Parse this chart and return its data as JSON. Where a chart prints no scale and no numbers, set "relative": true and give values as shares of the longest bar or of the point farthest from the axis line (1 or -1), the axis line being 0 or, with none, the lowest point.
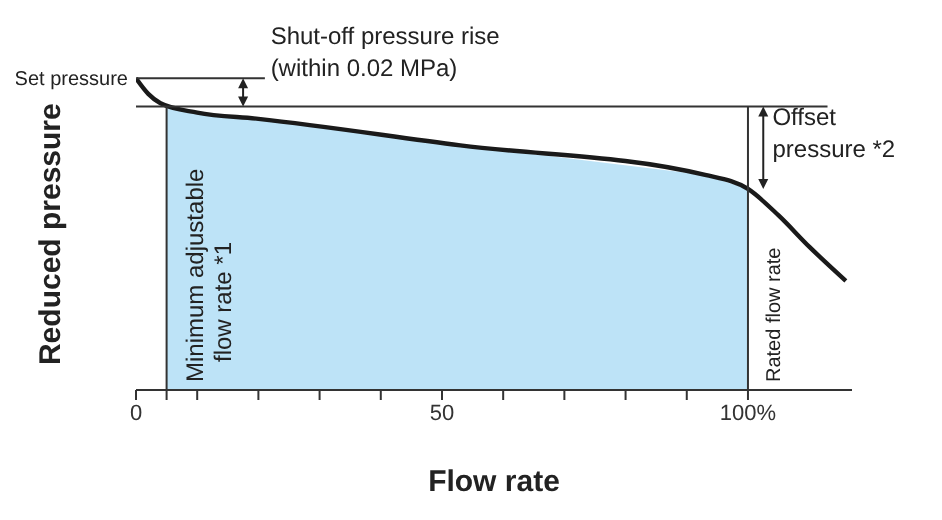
{
  "chart_data": {
    "type": "line",
    "relative": true,
    "xlabel": "Flow rate",
    "ylabel": "Reduced pressure",
    "xlim": [
      0,
      117
    ],
    "xticks": [
      0,
      {
        "value": 5,
        "label": null
      },
      {
        "value": 10,
        "label": null
      },
      {
        "value": 20,
        "label": null
      },
      {
        "value": 30,
        "label": null
      },
      {
        "value": 40,
        "label": null
      },
      50,
      {
        "value": 60,
        "label": null
      },
      {
        "value": 70,
        "label": null
      },
      {
        "value": 80,
        "label": null
      },
      {
        "value": 90,
        "label": null
      },
      {
        "value": 100,
        "label": "100%"
      }
    ],
    "series": [
      {
        "type": "area",
        "color": "#bde3f7",
        "x": [
          5,
          10,
          20,
          53,
          93,
          100
        ],
        "values": [
          0.915,
          0.89,
          0.87,
          0.785,
          0.69,
          0.645
        ]
      },
      {
        "type": "line",
        "color": "#1a1a1a",
        "x": [
          0,
          2,
          4,
          10,
          20,
          53,
          93,
          100,
          105,
          110,
          116
        ],
        "values": [
          1,
          0.95,
          0.92,
          0.89,
          0.87,
          0.785,
          0.69,
          0.645,
          0.56,
          0.46,
          0.35
        ]
      }
    ],
    "ref_lines": [
      {
        "axis": "x",
        "value": 5,
        "label": "Minimum adjustable flow rate *1",
        "color": "#333333"
      },
      {
        "axis": "x",
        "value": 100,
        "label": "Rated flow rate",
        "color": "#333333"
      },
      {
        "axis": "y",
        "value": 1,
        "label": "Set pressure",
        "color": "#333333"
      },
      {
        "axis": "y",
        "value": 0.91,
        "color": "#333333"
      }
    ],
    "annotations": [
      "Shut-off pressure rise (within 0.02 MPa)",
      "Offset pressure *2"
    ],
    "marker": "none",
    "line_style": "solid",
    "grid": false,
    "legend": false
  }
}
